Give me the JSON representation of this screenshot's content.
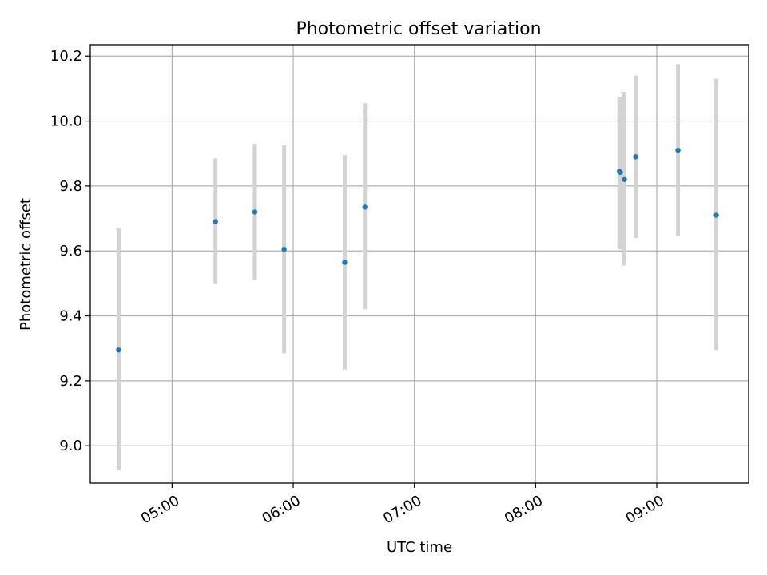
{
  "chart_data": {
    "type": "scatter",
    "title": "Photometric offset variation",
    "xlabel": "UTC time",
    "ylabel": "Photometric offset",
    "x_tick_labels": [
      "05:00",
      "06:00",
      "07:00",
      "08:00",
      "09:00"
    ],
    "y_tick_labels": [
      "9.0",
      "9.2",
      "9.4",
      "9.6",
      "9.8",
      "10.0",
      "10.2"
    ],
    "xlim": [
      "04:19:30",
      "09:45:30"
    ],
    "ylim": [
      8.885,
      10.235
    ],
    "grid": true,
    "colors": {
      "point": "#1f77b4",
      "errorbar": "#d3d3d3",
      "grid": "#b0b0b0"
    },
    "points": [
      {
        "x": "04:33:30",
        "y": 9.295,
        "ylow": 8.925,
        "yhigh": 9.67
      },
      {
        "x": "05:21:30",
        "y": 9.69,
        "ylow": 9.5,
        "yhigh": 9.885
      },
      {
        "x": "05:41:00",
        "y": 9.72,
        "ylow": 9.51,
        "yhigh": 9.93
      },
      {
        "x": "05:55:30",
        "y": 9.605,
        "ylow": 9.285,
        "yhigh": 9.925
      },
      {
        "x": "06:25:30",
        "y": 9.565,
        "ylow": 9.235,
        "yhigh": 9.895
      },
      {
        "x": "06:35:30",
        "y": 9.735,
        "ylow": 9.42,
        "yhigh": 10.055
      },
      {
        "x": "08:41:30",
        "y": 9.845,
        "ylow": 9.61,
        "yhigh": 10.075
      },
      {
        "x": "08:42:00",
        "y": 9.842,
        "ylow": 9.605,
        "yhigh": 10.07
      },
      {
        "x": "08:44:00",
        "y": 9.82,
        "ylow": 9.555,
        "yhigh": 10.09
      },
      {
        "x": "08:49:30",
        "y": 9.89,
        "ylow": 9.64,
        "yhigh": 10.14
      },
      {
        "x": "09:10:30",
        "y": 9.91,
        "ylow": 9.645,
        "yhigh": 10.175
      },
      {
        "x": "09:29:30",
        "y": 9.71,
        "ylow": 9.295,
        "yhigh": 10.13
      }
    ]
  }
}
